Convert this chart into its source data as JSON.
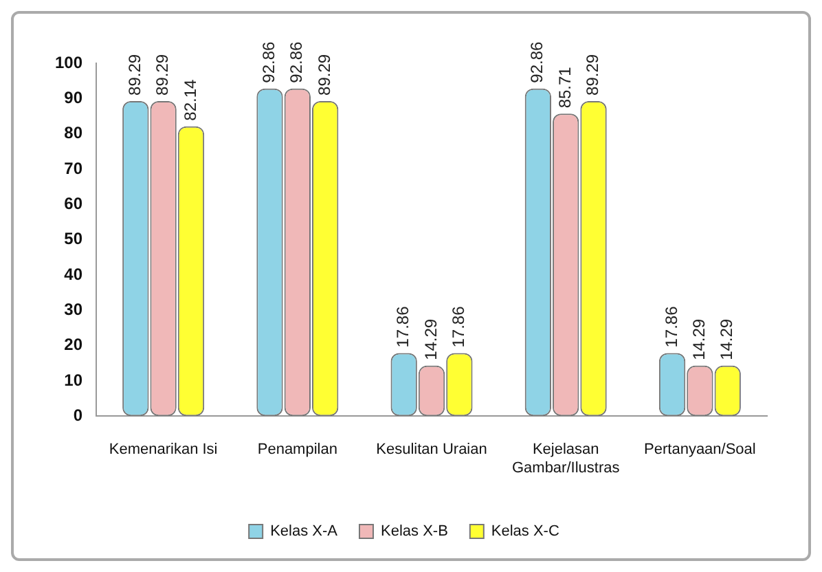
{
  "chart_data": {
    "type": "bar",
    "categories": [
      "Kemenarikan Isi",
      "Penampilan",
      "Kesulitan Uraian",
      "Kejelasan Gambar/Ilustras",
      "Pertanyaan/Soal"
    ],
    "series": [
      {
        "name": "Kelas X-A",
        "color": "#8fd3e6",
        "values": [
          89.29,
          92.86,
          17.86,
          92.86,
          17.86
        ]
      },
      {
        "name": "Kelas X-B",
        "color": "#f0b8b8",
        "values": [
          89.29,
          92.86,
          14.29,
          85.71,
          14.29
        ]
      },
      {
        "name": "Kelas X-C",
        "color": "#ffff33",
        "values": [
          82.14,
          89.29,
          17.86,
          89.29,
          14.29
        ]
      }
    ],
    "ylim": [
      0,
      100
    ],
    "yticks": [
      0,
      10,
      20,
      30,
      40,
      50,
      60,
      70,
      80,
      90,
      100
    ],
    "grid": false,
    "legend": "bottom",
    "data_labels": true
  }
}
